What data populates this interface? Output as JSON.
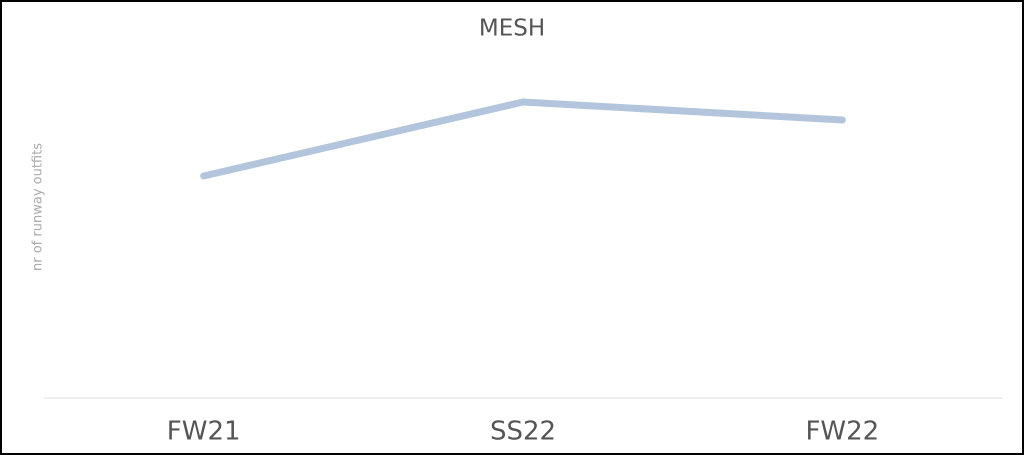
{
  "chart_data": {
    "type": "line",
    "title": "MESH",
    "y_label": "nr of runway outfits",
    "categories": [
      "FW21",
      "SS22",
      "FW22"
    ],
    "series": [
      {
        "name": "MESH",
        "color": "#b3c5dc",
        "values": [
          222,
          296,
          278
        ]
      }
    ],
    "ylim": [
      0,
      358
    ]
  }
}
